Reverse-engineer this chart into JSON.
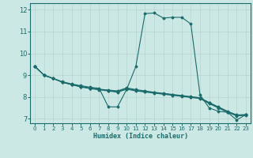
{
  "title": "",
  "xlabel": "Humidex (Indice chaleur)",
  "bg_color": "#cce8e4",
  "grid_color": "#b8d8d4",
  "line_color": "#1a6b6b",
  "xlim": [
    -0.5,
    23.5
  ],
  "ylim": [
    6.8,
    12.3
  ],
  "xticks": [
    0,
    1,
    2,
    3,
    4,
    5,
    6,
    7,
    8,
    9,
    10,
    11,
    12,
    13,
    14,
    15,
    16,
    17,
    18,
    19,
    20,
    21,
    22,
    23
  ],
  "yticks": [
    7,
    8,
    9,
    10,
    11,
    12
  ],
  "lines": [
    {
      "x": [
        0,
        1,
        2,
        3,
        4,
        5,
        6,
        7,
        8,
        9,
        10,
        11,
        12,
        13,
        14,
        15,
        16,
        17,
        18,
        19,
        20,
        21,
        22,
        23
      ],
      "y": [
        9.4,
        9.0,
        8.85,
        8.7,
        8.6,
        8.52,
        8.45,
        8.4,
        7.55,
        7.55,
        8.35,
        9.4,
        11.82,
        11.85,
        11.62,
        11.65,
        11.65,
        11.35,
        8.1,
        7.5,
        7.35,
        7.3,
        6.95,
        7.2
      ]
    },
    {
      "x": [
        0,
        1,
        2,
        3,
        4,
        5,
        6,
        7,
        8,
        9,
        10,
        11,
        12,
        13,
        14,
        15,
        16,
        17,
        18,
        19,
        20,
        21,
        22,
        23
      ],
      "y": [
        9.4,
        9.0,
        8.85,
        8.68,
        8.57,
        8.48,
        8.41,
        8.36,
        8.32,
        8.28,
        8.42,
        8.34,
        8.28,
        8.22,
        8.17,
        8.12,
        8.07,
        8.02,
        7.97,
        7.75,
        7.55,
        7.35,
        7.18,
        7.2
      ]
    },
    {
      "x": [
        0,
        1,
        2,
        3,
        4,
        5,
        6,
        7,
        8,
        9,
        10,
        11,
        12,
        13,
        14,
        15,
        16,
        17,
        18,
        19,
        20,
        21,
        22,
        23
      ],
      "y": [
        9.4,
        9.0,
        8.85,
        8.68,
        8.57,
        8.48,
        8.41,
        8.35,
        8.3,
        8.25,
        8.39,
        8.31,
        8.25,
        8.2,
        8.15,
        8.1,
        8.05,
        8.0,
        7.95,
        7.73,
        7.52,
        7.32,
        7.16,
        7.18
      ]
    },
    {
      "x": [
        0,
        1,
        2,
        3,
        4,
        5,
        6,
        7,
        8,
        9,
        10,
        11,
        12,
        13,
        14,
        15,
        16,
        17,
        18,
        19,
        20,
        21,
        22,
        23
      ],
      "y": [
        9.4,
        9.0,
        8.85,
        8.68,
        8.57,
        8.46,
        8.39,
        8.33,
        8.28,
        8.22,
        8.36,
        8.28,
        8.23,
        8.18,
        8.13,
        8.08,
        8.03,
        7.98,
        7.93,
        7.7,
        7.5,
        7.3,
        7.14,
        7.16
      ]
    }
  ]
}
